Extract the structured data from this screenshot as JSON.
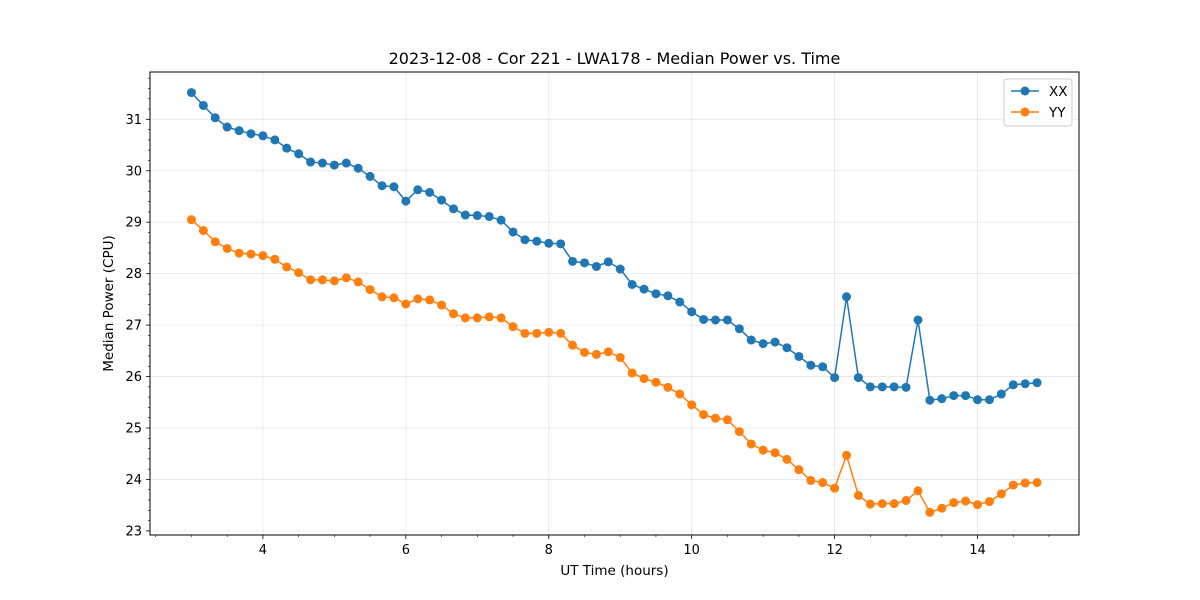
{
  "chart_data": {
    "type": "line",
    "title": "2023-12-08 - Cor 221 - LWA178 - Median Power vs. Time",
    "xlabel": "UT Time (hours)",
    "ylabel": "Median Power (CPU)",
    "xlim": [
      2.42,
      15.42
    ],
    "ylim": [
      22.92,
      31.92
    ],
    "xticks": [
      4,
      6,
      8,
      10,
      12,
      14
    ],
    "yticks": [
      23,
      24,
      25,
      26,
      27,
      28,
      29,
      30,
      31
    ],
    "grid": true,
    "legend_position": "top-right",
    "x": [
      3.0,
      3.167,
      3.333,
      3.5,
      3.667,
      3.833,
      4.0,
      4.167,
      4.333,
      4.5,
      4.667,
      4.833,
      5.0,
      5.167,
      5.333,
      5.5,
      5.667,
      5.833,
      6.0,
      6.167,
      6.333,
      6.5,
      6.667,
      6.833,
      7.0,
      7.167,
      7.333,
      7.5,
      7.667,
      7.833,
      8.0,
      8.167,
      8.333,
      8.5,
      8.667,
      8.833,
      9.0,
      9.167,
      9.333,
      9.5,
      9.667,
      9.833,
      10.0,
      10.167,
      10.333,
      10.5,
      10.667,
      10.833,
      11.0,
      11.167,
      11.333,
      11.5,
      11.667,
      11.833,
      12.0,
      12.167,
      12.333,
      12.5,
      12.667,
      12.833,
      13.0,
      13.167,
      13.333,
      13.5,
      13.667,
      13.833,
      14.0,
      14.167,
      14.333,
      14.5,
      14.667,
      14.833
    ],
    "series": [
      {
        "name": "XX",
        "color": "#1f77b4",
        "values": [
          31.52,
          31.27,
          31.03,
          30.85,
          30.78,
          30.72,
          30.68,
          30.6,
          30.44,
          30.33,
          30.17,
          30.15,
          30.11,
          30.15,
          30.05,
          29.89,
          29.71,
          29.69,
          29.41,
          29.63,
          29.58,
          29.43,
          29.26,
          29.14,
          29.13,
          29.11,
          29.04,
          28.81,
          28.66,
          28.63,
          28.59,
          28.58,
          28.24,
          28.21,
          28.14,
          28.23,
          28.09,
          27.79,
          27.7,
          27.61,
          27.57,
          27.45,
          27.26,
          27.11,
          27.1,
          27.1,
          26.93,
          26.71,
          26.64,
          26.67,
          26.56,
          26.39,
          26.22,
          26.19,
          25.98,
          27.55,
          25.98,
          25.8,
          25.8,
          25.8,
          25.79,
          27.1,
          25.54,
          25.57,
          25.63,
          25.63,
          25.55,
          25.55,
          25.66,
          25.84,
          25.86,
          25.88
        ]
      },
      {
        "name": "YY",
        "color": "#ff7f0e",
        "values": [
          29.05,
          28.84,
          28.62,
          28.49,
          28.4,
          28.38,
          28.35,
          28.28,
          28.13,
          28.02,
          27.88,
          27.88,
          27.86,
          27.92,
          27.84,
          27.69,
          27.55,
          27.53,
          27.41,
          27.51,
          27.49,
          27.39,
          27.22,
          27.14,
          27.14,
          27.16,
          27.14,
          26.97,
          26.84,
          26.84,
          26.86,
          26.84,
          26.61,
          26.47,
          26.43,
          26.48,
          26.37,
          26.07,
          25.96,
          25.89,
          25.79,
          25.66,
          25.45,
          25.26,
          25.19,
          25.16,
          24.93,
          24.69,
          24.57,
          24.52,
          24.39,
          24.19,
          23.98,
          23.94,
          23.83,
          24.47,
          23.69,
          23.52,
          23.53,
          23.53,
          23.59,
          23.78,
          23.36,
          23.44,
          23.55,
          23.58,
          23.51,
          23.57,
          23.72,
          23.89,
          23.93,
          23.94
        ]
      }
    ]
  }
}
